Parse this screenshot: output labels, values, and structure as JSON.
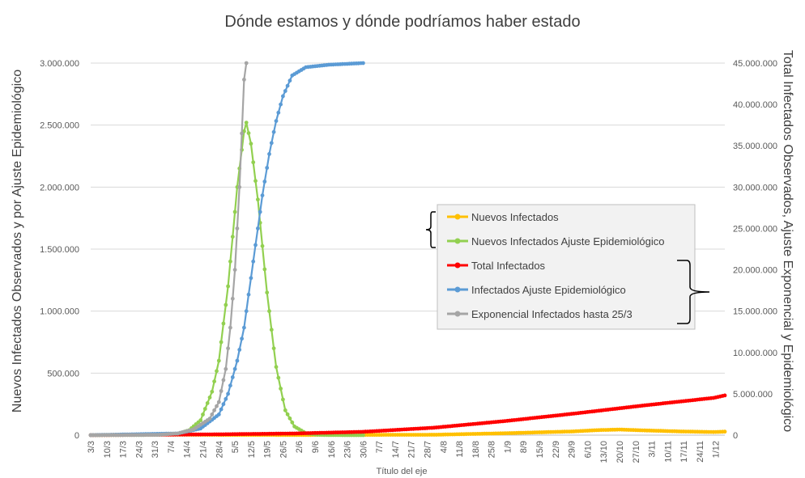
{
  "chart_data": {
    "type": "line",
    "title": "Dónde estamos y dónde podríamos haber estado",
    "xlabel": "Título del eje",
    "ylabel_left": "Nuevos Infectados Observados y por Ajuste Epidemiológico",
    "ylabel_right": "Total Infectados Observados, Ajuste Exponencial y Epidemiológico",
    "ylim_left": [
      0,
      3000000
    ],
    "ylim_right": [
      0,
      45000000
    ],
    "yticks_left": [
      "0",
      "500.000",
      "1.000.000",
      "1.500.000",
      "2.000.000",
      "2.500.000",
      "3.000.000"
    ],
    "yticks_right": [
      "0",
      "5.000.000",
      "10.000.000",
      "15.000.000",
      "20.000.000",
      "25.000.000",
      "30.000.000",
      "35.000.000",
      "40.000.000",
      "45.000.000"
    ],
    "x_start": "3/3",
    "x_end": "5/12",
    "x_tick_labels": [
      "3/3",
      "10/3",
      "17/3",
      "24/3",
      "31/3",
      "7/4",
      "14/4",
      "21/4",
      "28/4",
      "5/5",
      "12/5",
      "19/5",
      "26/5",
      "2/6",
      "9/6",
      "16/6",
      "23/6",
      "30/6",
      "7/7",
      "14/7",
      "21/7",
      "28/7",
      "4/8",
      "11/8",
      "18/8",
      "25/8",
      "1/9",
      "8/9",
      "15/9",
      "22/9",
      "29/9",
      "6/10",
      "13/10",
      "20/10",
      "27/10",
      "3/11",
      "10/11",
      "17/11",
      "24/11",
      "1/12"
    ],
    "grid": true,
    "legend_position": "center-right",
    "series": [
      {
        "name": "Nuevos Infectados",
        "axis": "left",
        "color": "#FFC000",
        "points": [
          [
            "3/3",
            0
          ],
          [
            "31/3",
            5000
          ],
          [
            "30/4",
            2000
          ],
          [
            "31/5",
            1500
          ],
          [
            "30/6",
            2000
          ],
          [
            "31/7",
            3000
          ],
          [
            "31/8",
            15000
          ],
          [
            "30/9",
            30000
          ],
          [
            "10/10",
            40000
          ],
          [
            "20/10",
            45000
          ],
          [
            "31/10",
            38000
          ],
          [
            "15/11",
            30000
          ],
          [
            "30/11",
            25000
          ],
          [
            "5/12",
            28000
          ]
        ]
      },
      {
        "name": "Nuevos Infectados Ajuste Epidemiológico",
        "axis": "left",
        "color": "#92D050",
        "points": [
          [
            "3/3",
            0
          ],
          [
            "1/4",
            2000
          ],
          [
            "10/4",
            10000
          ],
          [
            "15/4",
            40000
          ],
          [
            "20/4",
            120000
          ],
          [
            "25/4",
            350000
          ],
          [
            "28/4",
            600000
          ],
          [
            "2/5",
            1200000
          ],
          [
            "6/5",
            2000000
          ],
          [
            "9/5",
            2450000
          ],
          [
            "10/5",
            2520000
          ],
          [
            "12/5",
            2350000
          ],
          [
            "15/5",
            1900000
          ],
          [
            "19/5",
            1150000
          ],
          [
            "23/5",
            550000
          ],
          [
            "27/5",
            200000
          ],
          [
            "31/5",
            70000
          ],
          [
            "5/6",
            15000
          ],
          [
            "10/6",
            3000
          ],
          [
            "15/6",
            500
          ],
          [
            "30/6",
            0
          ]
        ]
      },
      {
        "name": "Total Infectados",
        "axis": "right",
        "color": "#FF0000",
        "points": [
          [
            "3/3",
            0
          ],
          [
            "30/4",
            100000
          ],
          [
            "31/5",
            200000
          ],
          [
            "30/6",
            400000
          ],
          [
            "31/7",
            900000
          ],
          [
            "31/8",
            1700000
          ],
          [
            "30/9",
            2600000
          ],
          [
            "31/10",
            3600000
          ],
          [
            "30/11",
            4500000
          ],
          [
            "5/12",
            4800000
          ]
        ]
      },
      {
        "name": "Infectados Ajuste Epidemiológico",
        "axis": "right",
        "color": "#5B9BD5",
        "points": [
          [
            "3/3",
            0
          ],
          [
            "10/4",
            200000
          ],
          [
            "20/4",
            800000
          ],
          [
            "28/4",
            2500000
          ],
          [
            "2/5",
            5000000
          ],
          [
            "6/5",
            9000000
          ],
          [
            "9/5",
            13000000
          ],
          [
            "12/5",
            19000000
          ],
          [
            "14/5",
            23000000
          ],
          [
            "17/5",
            29000000
          ],
          [
            "20/5",
            34000000
          ],
          [
            "23/5",
            38000000
          ],
          [
            "26/5",
            41000000
          ],
          [
            "30/5",
            43500000
          ],
          [
            "5/6",
            44500000
          ],
          [
            "15/6",
            44800000
          ],
          [
            "30/6",
            45000000
          ]
        ]
      },
      {
        "name": "Exponencial Infectados hasta 25/3",
        "axis": "right",
        "color": "#A5A5A5",
        "points": [
          [
            "3/3",
            0
          ],
          [
            "1/4",
            30000
          ],
          [
            "10/4",
            200000
          ],
          [
            "17/4",
            700000
          ],
          [
            "24/4",
            2000000
          ],
          [
            "28/4",
            4000000
          ],
          [
            "1/5",
            8000000
          ],
          [
            "3/5",
            13000000
          ],
          [
            "5/5",
            20000000
          ],
          [
            "7/5",
            30000000
          ],
          [
            "9/5",
            43000000
          ],
          [
            "10/5",
            46000000
          ]
        ]
      }
    ],
    "legend_entries": [
      "Nuevos Infectados",
      "Nuevos Infectados Ajuste Epidemiológico",
      "Total Infectados",
      "Infectados Ajuste Epidemiológico",
      "Exponencial Infectados hasta 25/3"
    ]
  }
}
